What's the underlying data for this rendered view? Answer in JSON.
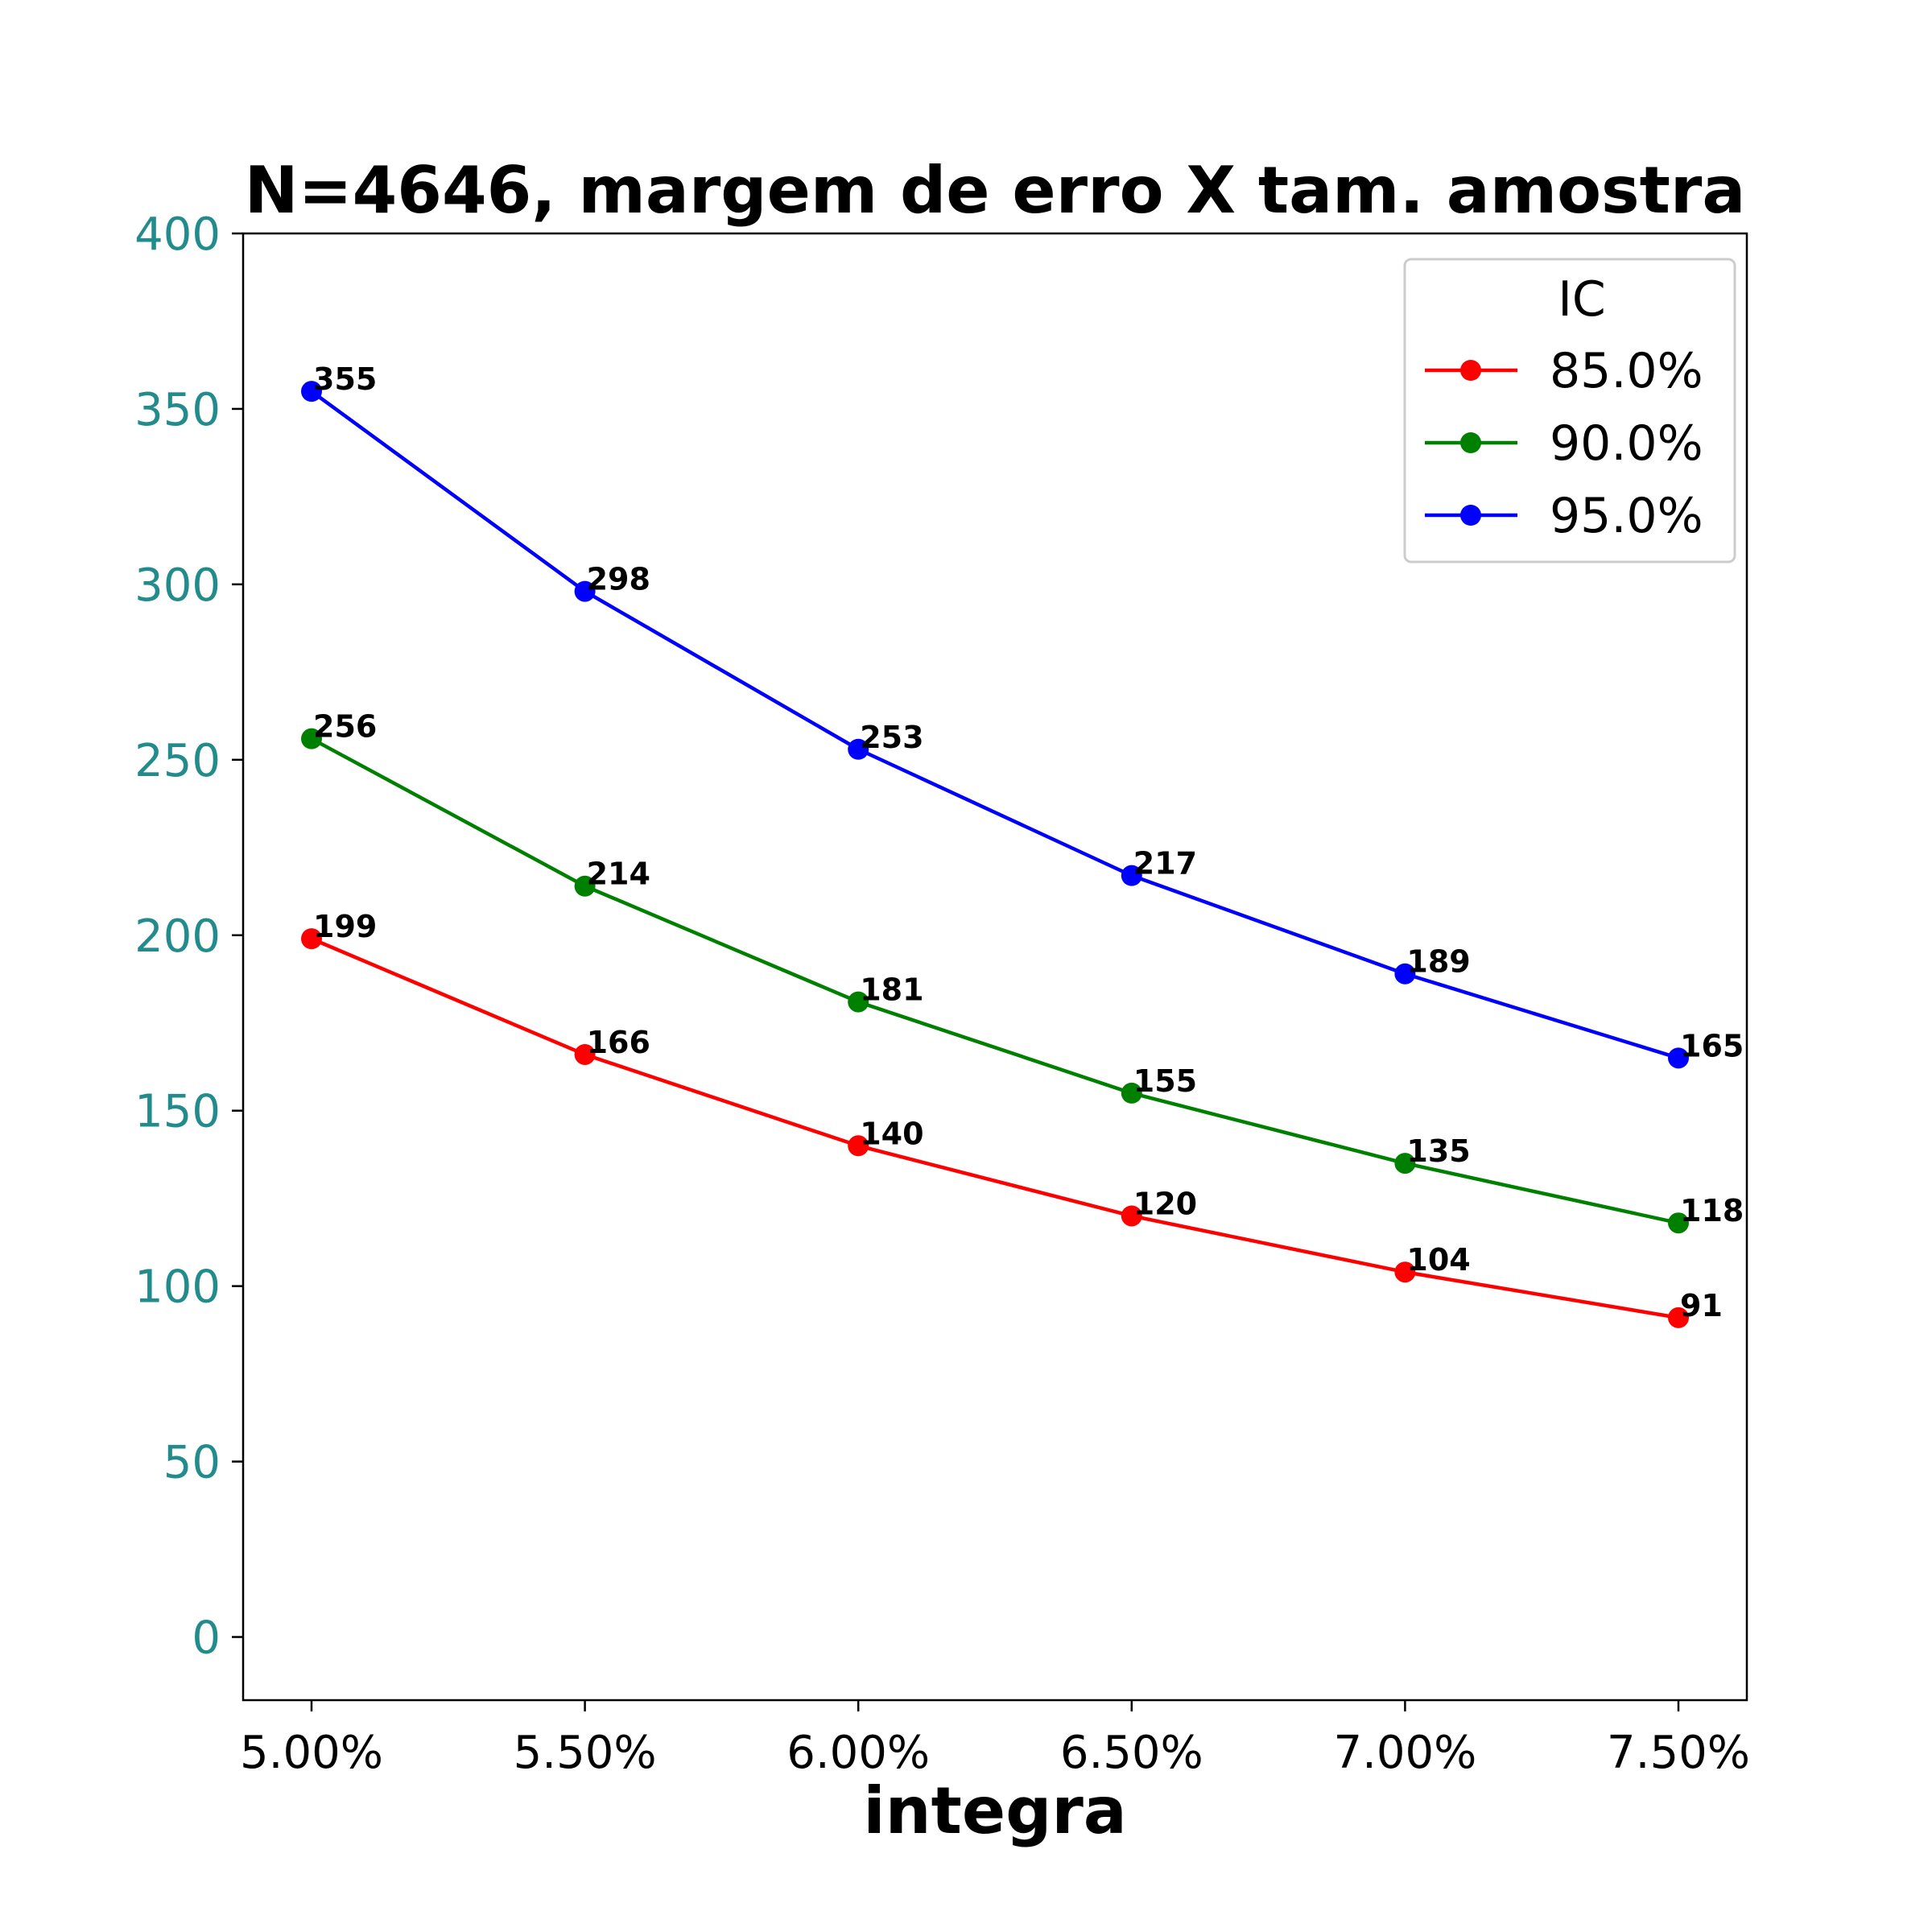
{
  "chart_data": {
    "type": "line",
    "title": "N=4646, margem de erro X tam. amostra",
    "xlabel": "integra",
    "ylabel": "",
    "x": [
      "5.00%",
      "5.50%",
      "6.00%",
      "6.50%",
      "7.00%",
      "7.50%"
    ],
    "ylim": [
      -18,
      400
    ],
    "yticks": [
      0,
      50,
      100,
      150,
      200,
      250,
      300,
      350,
      400
    ],
    "grid": false,
    "legend": {
      "title": "IC",
      "placement": "top-right"
    },
    "tick_color_y": "#228b8b",
    "series": [
      {
        "name": "85.0%",
        "color": "#ff0000",
        "values": [
          199,
          166,
          140,
          120,
          104,
          91
        ]
      },
      {
        "name": "90.0%",
        "color": "#008000",
        "values": [
          256,
          214,
          181,
          155,
          135,
          118
        ]
      },
      {
        "name": "95.0%",
        "color": "#0000ff",
        "values": [
          355,
          298,
          253,
          217,
          189,
          165
        ]
      }
    ]
  }
}
